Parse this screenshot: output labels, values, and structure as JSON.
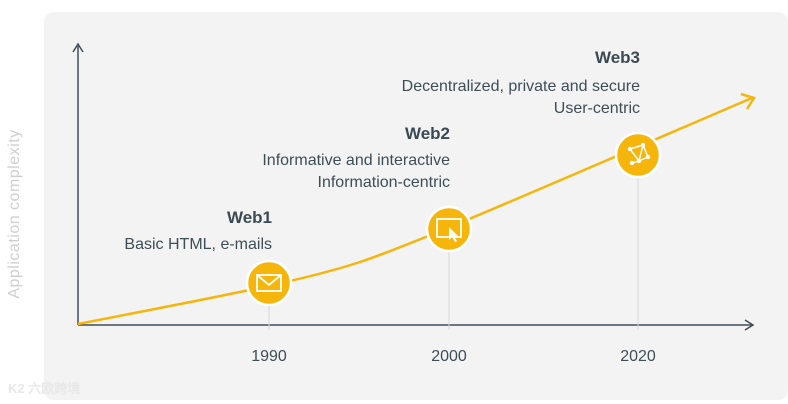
{
  "axis": {
    "y_label": "Application complexity"
  },
  "eras": [
    {
      "name": "Web1",
      "lines": [
        "Basic HTML, e-mails"
      ],
      "year": "1990",
      "icon": "envelope-icon"
    },
    {
      "name": "Web2",
      "lines": [
        "Informative and interactive",
        "Information-centric"
      ],
      "year": "2000",
      "icon": "screen-cursor-icon"
    },
    {
      "name": "Web3",
      "lines": [
        "Decentralized, private and secure",
        "User-centric"
      ],
      "year": "2020",
      "icon": "network-nodes-icon"
    }
  ],
  "colors": {
    "accent": "#f5b50a",
    "axis": "#3d4e57",
    "text": "#3d4e57",
    "panel": "#f2f3f2"
  },
  "watermark": "K2 六欧跨境"
}
